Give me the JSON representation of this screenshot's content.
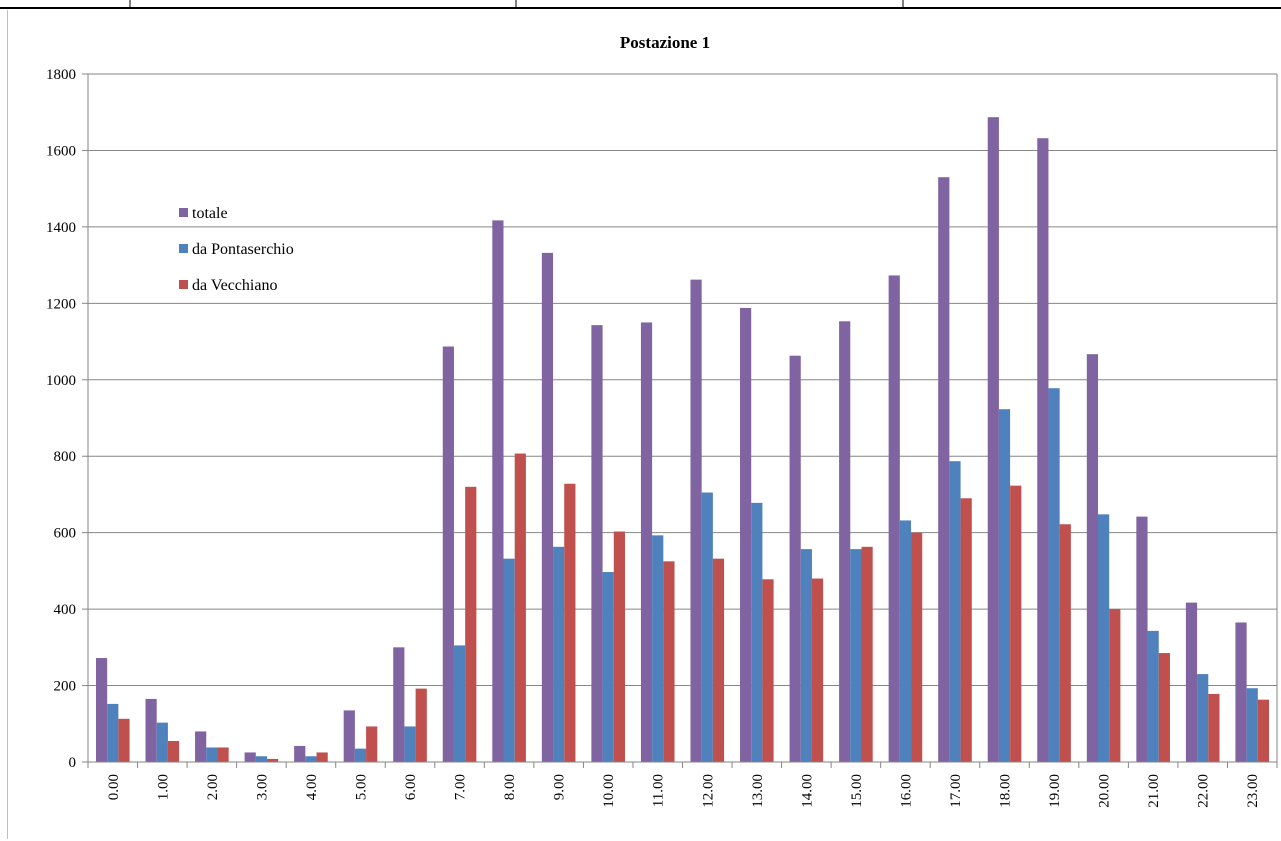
{
  "chart_data": {
    "type": "bar",
    "title": "Postazione 1",
    "xlabel": "",
    "ylabel": "",
    "ylim": [
      0,
      1800
    ],
    "yticks": [
      0,
      200,
      400,
      600,
      800,
      1000,
      1200,
      1400,
      1600,
      1800
    ],
    "grid": true,
    "legend_position": "left, upper-middle",
    "categories": [
      "0.00",
      "1.00",
      "2.00",
      "3.00",
      "4.00",
      "5.00",
      "6.00",
      "7.00",
      "8.00",
      "9.00",
      "10.00",
      "11.00",
      "12.00",
      "13.00",
      "14.00",
      "15.00",
      "16.00",
      "17.00",
      "18.00",
      "19.00",
      "20.00",
      "21.00",
      "22.00",
      "23.00"
    ],
    "series": [
      {
        "name": "totale",
        "color": "#8064A2",
        "values": [
          272,
          165,
          80,
          25,
          42,
          135,
          300,
          1087,
          1417,
          1332,
          1143,
          1150,
          1262,
          1188,
          1063,
          1153,
          1273,
          1530,
          1687,
          1632,
          1067,
          642,
          417,
          365
        ]
      },
      {
        "name": "da Pontaserchio",
        "color": "#4F81BD",
        "values": [
          152,
          103,
          38,
          15,
          15,
          35,
          93,
          305,
          532,
          563,
          497,
          593,
          705,
          678,
          557,
          557,
          632,
          787,
          923,
          978,
          648,
          343,
          230,
          193
        ]
      },
      {
        "name": "da Vecchiano",
        "color": "#C0504D",
        "values": [
          113,
          55,
          38,
          8,
          25,
          93,
          192,
          720,
          807,
          728,
          603,
          525,
          532,
          478,
          480,
          563,
          600,
          690,
          723,
          622,
          400,
          285,
          178,
          163
        ]
      }
    ]
  }
}
